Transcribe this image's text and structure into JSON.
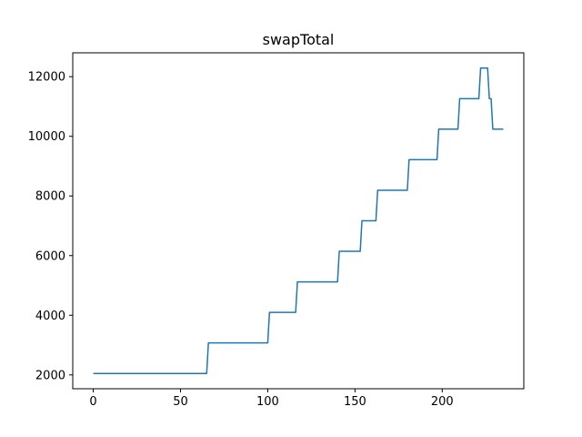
{
  "chart_data": {
    "type": "line",
    "title": "swapTotal",
    "xlabel": "",
    "ylabel": "",
    "xlim": [
      -11.75,
      246.75
    ],
    "ylim": [
      1536,
      12800
    ],
    "xticks": [
      0,
      50,
      100,
      150,
      200
    ],
    "yticks": [
      2000,
      4000,
      6000,
      8000,
      10000,
      12000
    ],
    "grid": false,
    "legend": "none",
    "series": [
      {
        "color": "#1f77b4",
        "x": [
          0,
          65,
          66,
          100,
          101,
          116,
          117,
          140,
          141,
          153,
          154,
          162,
          163,
          180,
          181,
          197,
          198,
          209,
          210,
          221,
          222,
          226,
          227,
          228,
          229,
          235
        ],
        "y": [
          2048,
          2048,
          3072,
          3072,
          4096,
          4096,
          5120,
          5120,
          6144,
          6144,
          7168,
          7168,
          8192,
          8192,
          9216,
          9216,
          10240,
          10240,
          11264,
          11264,
          12288,
          12288,
          11264,
          11264,
          10240,
          10240
        ]
      }
    ]
  }
}
